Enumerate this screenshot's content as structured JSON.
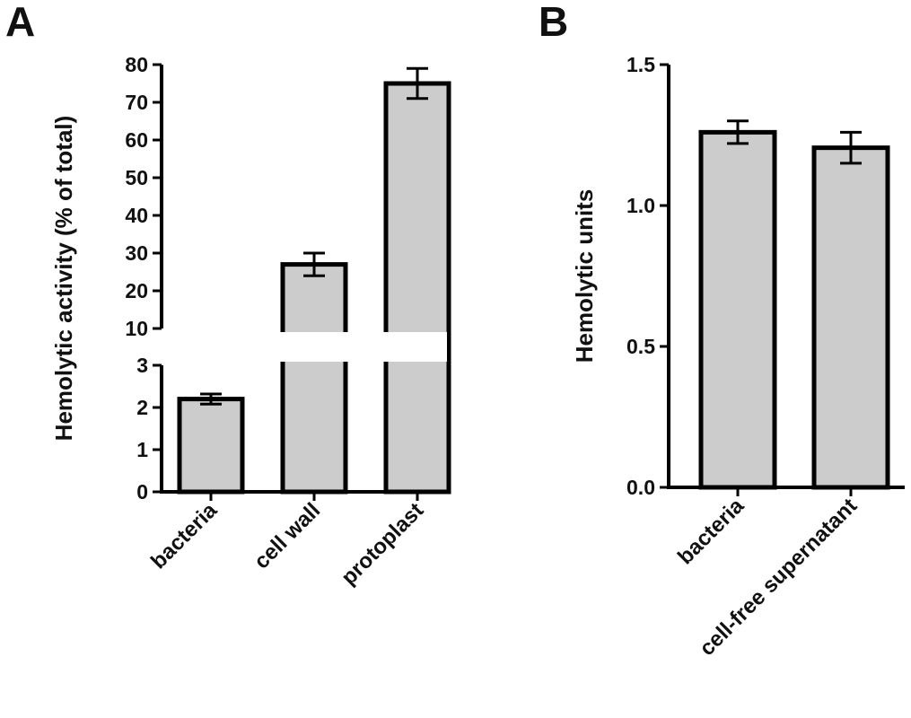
{
  "chart_data": [
    {
      "panel": "A",
      "type": "bar",
      "ylabel": "Hemolytic activity (% of total)",
      "categories": [
        "bacteria",
        "cell wall",
        "protoplast"
      ],
      "values": [
        2.2,
        27.0,
        75.0
      ],
      "errors": [
        0.12,
        3.0,
        4.0
      ],
      "y_axis_break": {
        "lower_segment": [
          0,
          3
        ],
        "upper_segment": [
          10,
          80
        ]
      },
      "yticks_lower": [
        "0",
        "1",
        "2",
        "3"
      ],
      "yticks_upper": [
        "10",
        "20",
        "30",
        "40",
        "50",
        "60",
        "70",
        "80"
      ],
      "bar_color": "#cccccc",
      "edge_color": "#000000",
      "grid": false,
      "legend": "none"
    },
    {
      "panel": "B",
      "type": "bar",
      "ylabel": "Hemolytic units",
      "categories": [
        "bacteria",
        "cell-free supernatant"
      ],
      "values": [
        1.26,
        1.205
      ],
      "errors": [
        0.04,
        0.055
      ],
      "ylim": [
        0,
        1.5
      ],
      "yticks": [
        "0.0",
        "0.5",
        "1.0",
        "1.5"
      ],
      "bar_color": "#cccccc",
      "edge_color": "#000000",
      "grid": false,
      "legend": "none"
    }
  ]
}
